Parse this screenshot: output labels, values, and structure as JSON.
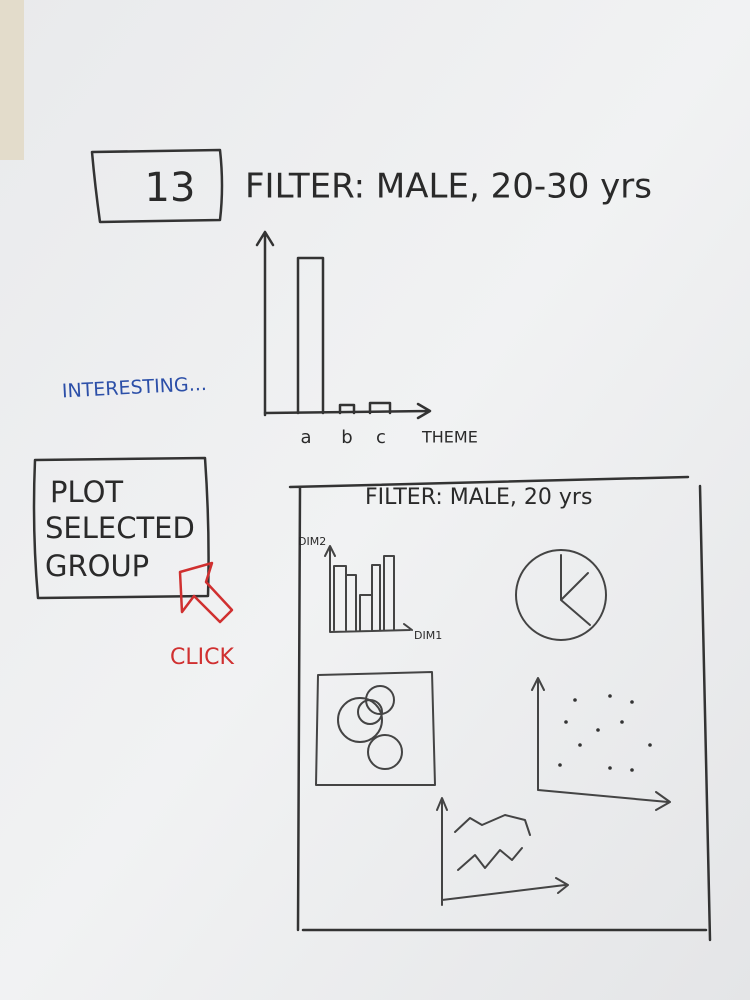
{
  "header": {
    "number": "13",
    "filter": "FILTER: MALE, 20-30 yrs"
  },
  "annotation": "INTERESTING...",
  "chart_sketch": {
    "x_labels": [
      "a",
      "b",
      "c"
    ],
    "x_axis_label": "THEME"
  },
  "button": {
    "lines": [
      "PLOT",
      "SELECTED",
      "GROUP"
    ],
    "action": "CLICK"
  },
  "panel": {
    "title": "FILTER: MALE, 20 yrs",
    "y_axis_label": "DIM2",
    "x_axis_label": "DIM1"
  }
}
